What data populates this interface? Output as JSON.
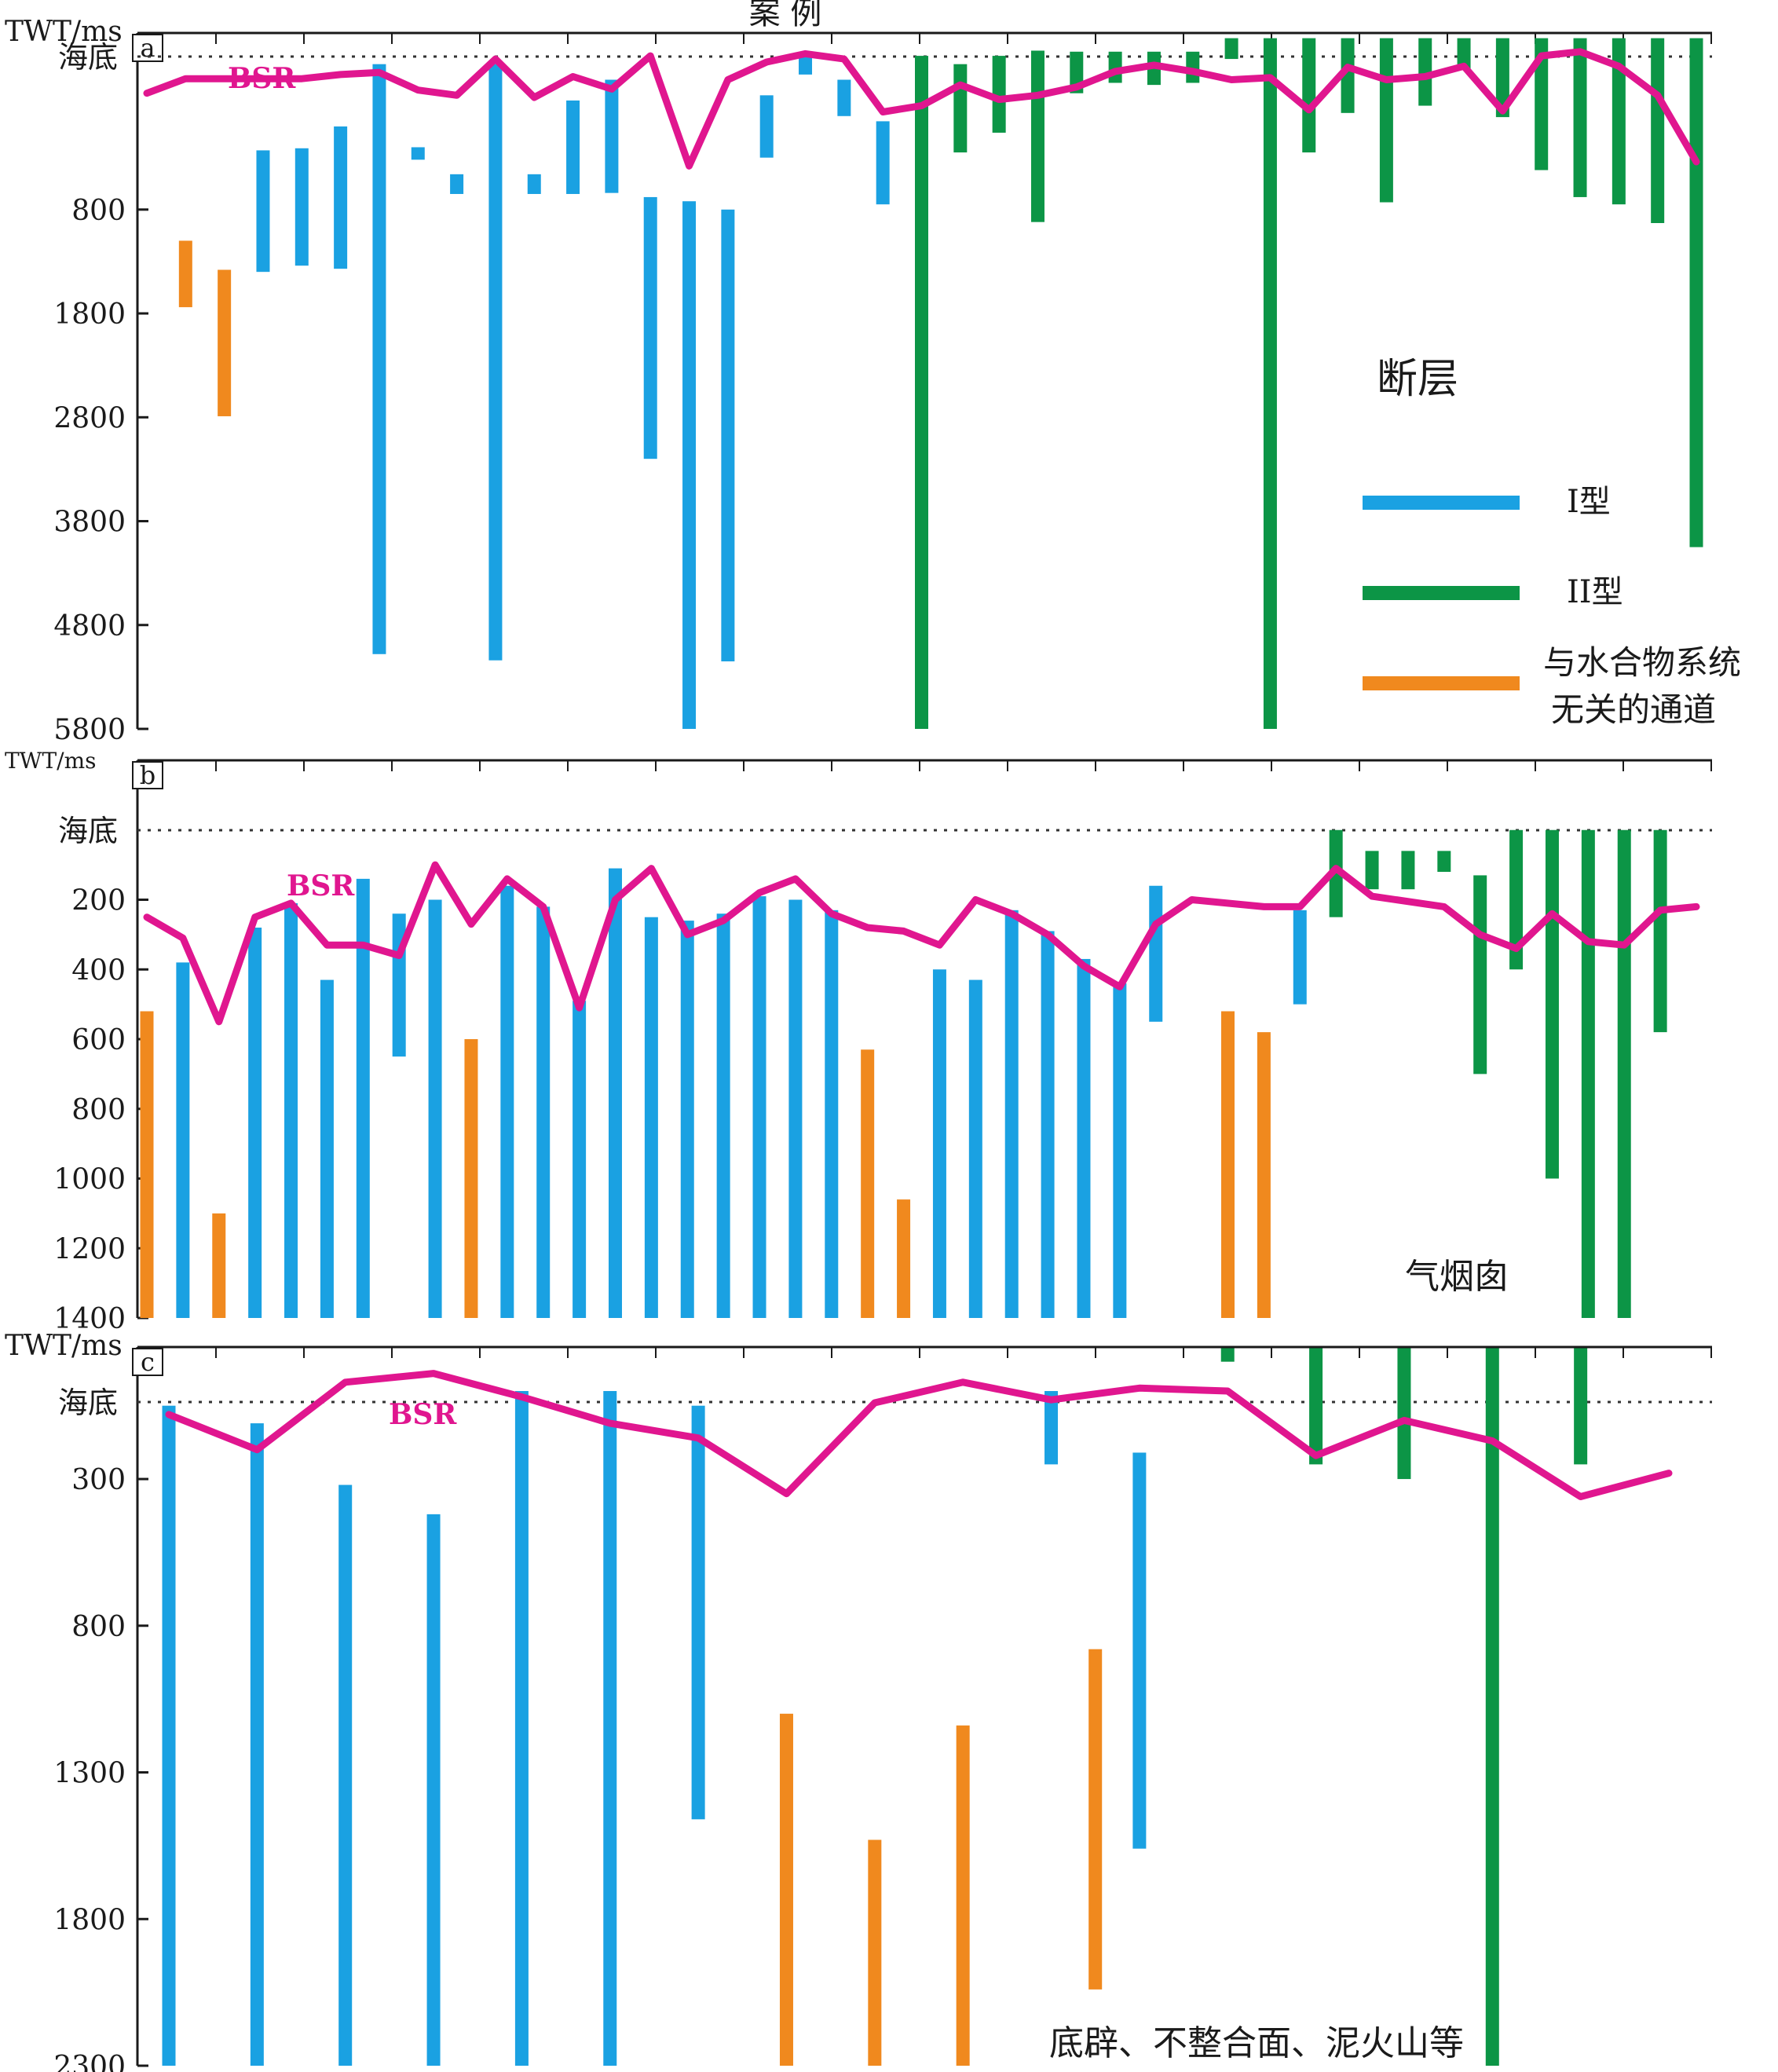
{
  "header": {
    "title": "案 例"
  },
  "colors": {
    "type1": "#1aa1e2",
    "type2": "#0c9546",
    "unrelated": "#f0891e",
    "bsr": "#e0168f",
    "axis": "#1a1a1a",
    "dotted": "#333333"
  },
  "legend": {
    "heading": "断层",
    "items": [
      {
        "key": "type1",
        "label": "I型"
      },
      {
        "key": "type2",
        "label": "II型"
      },
      {
        "key": "unrelated",
        "label": "与水合物系统",
        "label2": "无关的通道"
      }
    ]
  },
  "chart_data": [
    {
      "panel": "a",
      "type": "bar",
      "ylabel": "TWT/ms",
      "top_label": "海底",
      "bsr_label": "BSR",
      "note": "",
      "ticks": [
        800,
        1800,
        2800,
        3800,
        4800,
        5800
      ],
      "ylim": [
        -900,
        5800
      ],
      "series": [
        {
          "key": "unrelated",
          "values": [
            [
              1,
              1100,
              1740
            ],
            [
              2,
              1380,
              2790
            ]
          ]
        },
        {
          "key": "type1",
          "values": [
            [
              3,
              230,
              1400
            ],
            [
              4,
              210,
              1340
            ],
            [
              5,
              0,
              1370
            ],
            [
              6,
              -600,
              5080
            ],
            [
              7,
              200,
              320
            ],
            [
              8,
              460,
              650
            ],
            [
              9,
              -600,
              5140
            ],
            [
              10,
              460,
              650
            ],
            [
              11,
              -250,
              650
            ],
            [
              12,
              -450,
              640
            ],
            [
              13,
              680,
              3200
            ],
            [
              14,
              720,
              5800
            ],
            [
              15,
              800,
              5150
            ],
            [
              16,
              -300,
              300
            ],
            [
              17,
              -700,
              -500
            ],
            [
              18,
              -450,
              -100
            ],
            [
              19,
              -50,
              750
            ]
          ]
        },
        {
          "key": "type2",
          "values": [
            [
              20,
              -680,
              5800
            ],
            [
              21,
              -600,
              250
            ],
            [
              22,
              -680,
              60
            ],
            [
              23,
              -730,
              920
            ],
            [
              24,
              -720,
              -320
            ],
            [
              25,
              -720,
              -420
            ],
            [
              26,
              -720,
              -400
            ],
            [
              27,
              -720,
              -420
            ],
            [
              28,
              -850,
              -650
            ],
            [
              29,
              -850,
              5800
            ],
            [
              30,
              -850,
              250
            ],
            [
              31,
              -850,
              -130
            ],
            [
              32,
              -850,
              730
            ],
            [
              33,
              -850,
              -200
            ],
            [
              34,
              -850,
              -550
            ],
            [
              35,
              -850,
              -90
            ],
            [
              36,
              -850,
              420
            ],
            [
              37,
              -850,
              680
            ],
            [
              38,
              -850,
              750
            ],
            [
              39,
              -850,
              930
            ],
            [
              40,
              -850,
              4050
            ]
          ]
        },
        {
          "key": "bsr",
          "name": "BSR",
          "line": [
            [
              0,
              -320
            ],
            [
              1,
              -460
            ],
            [
              2,
              -460
            ],
            [
              3,
              -460
            ],
            [
              4,
              -460
            ],
            [
              5,
              -500
            ],
            [
              6,
              -520
            ],
            [
              7,
              -350
            ],
            [
              8,
              -300
            ],
            [
              9,
              -650
            ],
            [
              10,
              -280
            ],
            [
              11,
              -480
            ],
            [
              12,
              -360
            ],
            [
              13,
              -680
            ],
            [
              14,
              380
            ],
            [
              15,
              -450
            ],
            [
              16,
              -620
            ],
            [
              17,
              -700
            ],
            [
              18,
              -650
            ],
            [
              19,
              -140
            ],
            [
              20,
              -200
            ],
            [
              21,
              -400
            ],
            [
              22,
              -260
            ],
            [
              23,
              -300
            ],
            [
              24,
              -380
            ],
            [
              25,
              -530
            ],
            [
              26,
              -590
            ],
            [
              27,
              -530
            ],
            [
              28,
              -450
            ],
            [
              29,
              -470
            ],
            [
              30,
              -160
            ],
            [
              31,
              -570
            ],
            [
              32,
              -450
            ],
            [
              33,
              -480
            ],
            [
              34,
              -580
            ],
            [
              35,
              -150
            ],
            [
              36,
              -680
            ],
            [
              37,
              -720
            ],
            [
              38,
              -580
            ],
            [
              39,
              -300
            ],
            [
              40,
              340
            ]
          ]
        }
      ]
    },
    {
      "panel": "b",
      "type": "bar",
      "ylabel": "TWT/ms",
      "top_label": "海底",
      "bsr_label": "BSR",
      "note": "气烟囱",
      "ticks": [
        200,
        400,
        600,
        800,
        1000,
        1200,
        1400
      ],
      "ylim": [
        -200,
        1400
      ],
      "series": [
        {
          "key": "unrelated",
          "values": [
            [
              0,
              520,
              1400
            ],
            [
              9,
              600,
              1400
            ],
            [
              20,
              630,
              1400
            ],
            [
              21,
              1060,
              1400
            ],
            [
              30,
              520,
              1400
            ],
            [
              31,
              580,
              1400
            ],
            [
              2,
              1100,
              1400
            ]
          ]
        },
        {
          "key": "type1",
          "values": [
            [
              1,
              380,
              1400
            ],
            [
              3,
              280,
              1400
            ],
            [
              4,
              210,
              1400
            ],
            [
              5,
              430,
              1400
            ],
            [
              6,
              140,
              1400
            ],
            [
              7,
              240,
              650
            ],
            [
              8,
              200,
              1400
            ],
            [
              10,
              160,
              1400
            ],
            [
              11,
              220,
              1400
            ],
            [
              12,
              490,
              1400
            ],
            [
              13,
              110,
              1400
            ],
            [
              14,
              250,
              1400
            ],
            [
              15,
              260,
              1400
            ],
            [
              16,
              240,
              1400
            ],
            [
              17,
              190,
              1400
            ],
            [
              18,
              200,
              1400
            ],
            [
              19,
              230,
              1400
            ],
            [
              22,
              400,
              1400
            ],
            [
              23,
              430,
              1400
            ],
            [
              24,
              230,
              1400
            ],
            [
              25,
              290,
              1400
            ],
            [
              26,
              370,
              1400
            ],
            [
              27,
              440,
              1400
            ],
            [
              28,
              160,
              550
            ],
            [
              32,
              230,
              500
            ]
          ]
        },
        {
          "key": "type2",
          "values": [
            [
              33,
              0,
              250
            ],
            [
              34,
              60,
              170
            ],
            [
              35,
              60,
              170
            ],
            [
              36,
              60,
              120
            ],
            [
              37,
              130,
              700
            ],
            [
              38,
              0,
              400
            ],
            [
              39,
              0,
              1000
            ],
            [
              40,
              0,
              1400
            ],
            [
              41,
              0,
              1400
            ],
            [
              42,
              0,
              580
            ]
          ]
        },
        {
          "key": "bsr",
          "name": "BSR",
          "line": [
            [
              0,
              250
            ],
            [
              1,
              310
            ],
            [
              2,
              550
            ],
            [
              3,
              250
            ],
            [
              4,
              210
            ],
            [
              5,
              330
            ],
            [
              6,
              330
            ],
            [
              7,
              360
            ],
            [
              8,
              100
            ],
            [
              9,
              270
            ],
            [
              10,
              140
            ],
            [
              11,
              220
            ],
            [
              12,
              510
            ],
            [
              13,
              200
            ],
            [
              14,
              110
            ],
            [
              15,
              300
            ],
            [
              16,
              260
            ],
            [
              17,
              180
            ],
            [
              18,
              140
            ],
            [
              19,
              240
            ],
            [
              20,
              280
            ],
            [
              21,
              290
            ],
            [
              22,
              330
            ],
            [
              23,
              200
            ],
            [
              24,
              240
            ],
            [
              25,
              300
            ],
            [
              26,
              390
            ],
            [
              27,
              450
            ],
            [
              28,
              270
            ],
            [
              29,
              200
            ],
            [
              31,
              220
            ],
            [
              32,
              220
            ],
            [
              33,
              110
            ],
            [
              34,
              190
            ],
            [
              36,
              220
            ],
            [
              37,
              300
            ],
            [
              38,
              340
            ],
            [
              39,
              240
            ],
            [
              40,
              320
            ],
            [
              41,
              330
            ],
            [
              42,
              230
            ],
            [
              43,
              220
            ]
          ]
        }
      ]
    },
    {
      "panel": "c",
      "type": "bar",
      "ylabel": "TWT/ms",
      "top_label": "海底",
      "bsr_label": "BSR",
      "note": "底辟、不整合面、泥火山等",
      "ticks": [
        300,
        800,
        1300,
        1800,
        2300
      ],
      "ylim": [
        -150,
        2300
      ],
      "series": [
        {
          "key": "type1",
          "values": [
            [
              0,
              50,
              2300
            ],
            [
              1,
              110,
              2300
            ],
            [
              2,
              320,
              2300
            ],
            [
              3,
              420,
              2300
            ],
            [
              4,
              0,
              2300
            ],
            [
              5,
              0,
              2300
            ],
            [
              6,
              50,
              1460
            ],
            [
              10,
              0,
              250
            ],
            [
              11,
              210,
              1560
            ]
          ]
        },
        {
          "key": "unrelated",
          "values": [
            [
              7,
              1100,
              2300
            ],
            [
              8,
              1530,
              2300
            ],
            [
              9,
              1140,
              2300
            ],
            [
              10.5,
              880,
              2040
            ]
          ]
        },
        {
          "key": "type2",
          "values": [
            [
              12,
              -150,
              -100
            ],
            [
              13,
              -150,
              250
            ],
            [
              14,
              -150,
              300
            ],
            [
              15,
              -150,
              2300
            ],
            [
              16,
              -150,
              250
            ]
          ]
        },
        {
          "key": "bsr",
          "name": "BSR",
          "line": [
            [
              0,
              80
            ],
            [
              1,
              200
            ],
            [
              2,
              -30
            ],
            [
              3,
              -60
            ],
            [
              4,
              20
            ],
            [
              5,
              110
            ],
            [
              6,
              160
            ],
            [
              7,
              350
            ],
            [
              8,
              40
            ],
            [
              9,
              -30
            ],
            [
              10,
              30
            ],
            [
              11,
              -10
            ],
            [
              12,
              0
            ],
            [
              13,
              220
            ],
            [
              14,
              100
            ],
            [
              15,
              170
            ],
            [
              16,
              360
            ],
            [
              17,
              280
            ]
          ]
        }
      ]
    }
  ]
}
